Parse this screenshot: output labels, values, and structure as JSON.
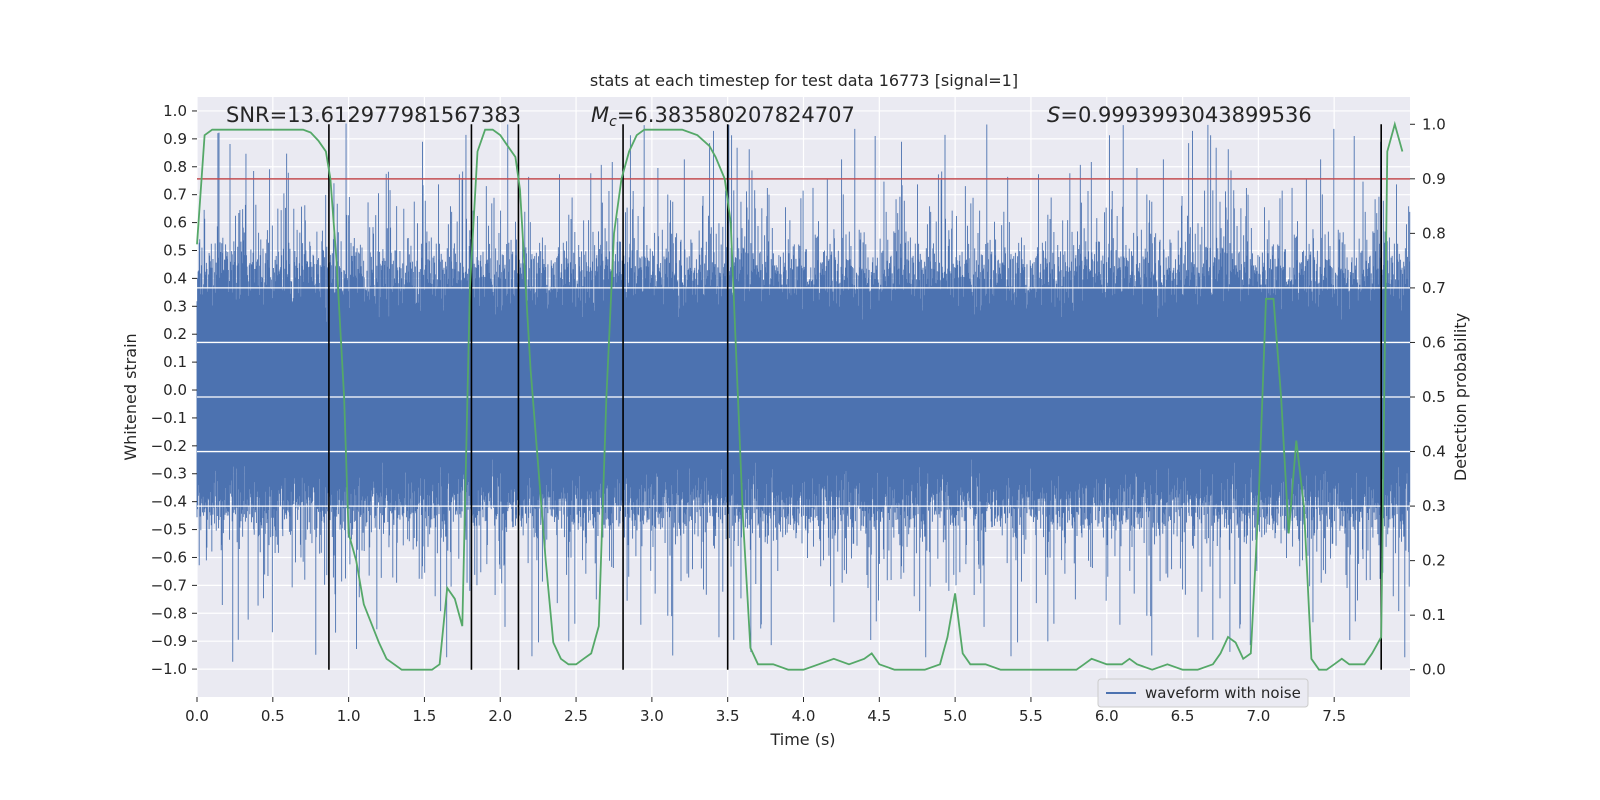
{
  "chart_data": {
    "type": "line",
    "title": "stats at each timestep for test data 16773 [signal=1]",
    "xlabel": "Time (s)",
    "ylabel_left": "Whitened strain",
    "ylabel_right": "Detection probability",
    "xlim": [
      0.0,
      8.0
    ],
    "ylim_left": [
      -1.1,
      1.05
    ],
    "ylim_right": [
      -0.05,
      1.05
    ],
    "x_ticks": [
      0.0,
      0.5,
      1.0,
      1.5,
      2.0,
      2.5,
      3.0,
      3.5,
      4.0,
      4.5,
      5.0,
      5.5,
      6.0,
      6.5,
      7.0,
      7.5
    ],
    "x_tick_labels": [
      "0.0",
      "0.5",
      "1.0",
      "1.5",
      "2.0",
      "2.5",
      "3.0",
      "3.5",
      "4.0",
      "4.5",
      "5.0",
      "5.5",
      "6.0",
      "6.5",
      "7.0",
      "7.5"
    ],
    "left_ticks": [
      1.0,
      0.9,
      0.8,
      0.7,
      0.6,
      0.5,
      0.4,
      0.3,
      0.2,
      0.1,
      0.0,
      -0.1,
      -0.2,
      -0.3,
      -0.4,
      -0.5,
      -0.6,
      -0.7,
      -0.8,
      -0.9,
      -1.0
    ],
    "left_tick_labels": [
      "1.0",
      "0.9",
      "0.8",
      "0.7",
      "0.6",
      "0.5",
      "0.4",
      "0.3",
      "0.2",
      "0.1",
      "0.0",
      "−0.1",
      "−0.2",
      "−0.3",
      "−0.4",
      "−0.5",
      "−0.6",
      "−0.7",
      "−0.8",
      "−0.9",
      "−1.0"
    ],
    "right_ticks": [
      1.0,
      0.9,
      0.8,
      0.7,
      0.6,
      0.5,
      0.4,
      0.3,
      0.2,
      0.1,
      0.0
    ],
    "right_tick_labels": [
      "1.0",
      "0.9",
      "0.8",
      "0.7",
      "0.6",
      "0.5",
      "0.4",
      "0.3",
      "0.2",
      "0.1",
      "0.0"
    ],
    "annotations": {
      "snr": "SNR=13.612977981567383",
      "mc_symbol": "M",
      "mc_sub": "c",
      "mc_value": "=6.383580207824707",
      "s_symbol": "S",
      "s_value": "=0.9993993043899536"
    },
    "threshold": {
      "axis": "right",
      "value": 0.9,
      "color": "#c44e52"
    },
    "segment_boundaries": [
      0.87,
      1.81,
      2.12,
      2.81,
      3.5,
      7.81
    ],
    "series": [
      {
        "name": "waveform with noise",
        "axis": "left",
        "color": "#4c72b0",
        "kind": "dense_noise",
        "typical_band": [
          -0.42,
          0.42
        ],
        "peak_max": 0.96,
        "peak_min": -1.0
      },
      {
        "name": "detection probability",
        "axis": "right",
        "color": "#55a868",
        "x": [
          0.0,
          0.05,
          0.1,
          0.2,
          0.3,
          0.4,
          0.5,
          0.6,
          0.7,
          0.75,
          0.8,
          0.85,
          0.88,
          0.92,
          0.97,
          1.0,
          1.05,
          1.1,
          1.2,
          1.25,
          1.35,
          1.45,
          1.5,
          1.55,
          1.6,
          1.65,
          1.7,
          1.75,
          1.8,
          1.85,
          1.9,
          1.95,
          2.0,
          2.05,
          2.1,
          2.13,
          2.2,
          2.3,
          2.35,
          2.4,
          2.45,
          2.5,
          2.55,
          2.6,
          2.65,
          2.7,
          2.75,
          2.8,
          2.85,
          2.9,
          2.95,
          3.0,
          3.1,
          3.2,
          3.3,
          3.38,
          3.42,
          3.48,
          3.52,
          3.6,
          3.65,
          3.7,
          3.75,
          3.8,
          3.9,
          4.0,
          4.1,
          4.2,
          4.3,
          4.4,
          4.45,
          4.5,
          4.6,
          4.8,
          4.9,
          4.95,
          5.0,
          5.05,
          5.1,
          5.2,
          5.3,
          5.4,
          5.5,
          5.6,
          5.7,
          5.8,
          5.85,
          5.9,
          6.0,
          6.1,
          6.15,
          6.2,
          6.3,
          6.4,
          6.5,
          6.6,
          6.7,
          6.75,
          6.8,
          6.85,
          6.9,
          6.95,
          7.0,
          7.05,
          7.1,
          7.15,
          7.2,
          7.25,
          7.3,
          7.35,
          7.4,
          7.45,
          7.5,
          7.55,
          7.6,
          7.7,
          7.75,
          7.81,
          7.85,
          7.9,
          7.95
        ],
        "y": [
          0.78,
          0.98,
          0.99,
          0.99,
          0.99,
          0.99,
          0.99,
          0.99,
          0.99,
          0.985,
          0.97,
          0.95,
          0.9,
          0.75,
          0.5,
          0.25,
          0.2,
          0.12,
          0.05,
          0.02,
          0.0,
          0.0,
          0.0,
          0.0,
          0.01,
          0.15,
          0.13,
          0.08,
          0.7,
          0.95,
          0.99,
          0.99,
          0.98,
          0.96,
          0.94,
          0.88,
          0.55,
          0.2,
          0.05,
          0.02,
          0.01,
          0.01,
          0.02,
          0.03,
          0.08,
          0.5,
          0.8,
          0.9,
          0.95,
          0.98,
          0.99,
          0.99,
          0.99,
          0.99,
          0.98,
          0.96,
          0.94,
          0.9,
          0.82,
          0.28,
          0.04,
          0.01,
          0.01,
          0.01,
          0.0,
          0.0,
          0.01,
          0.02,
          0.01,
          0.02,
          0.03,
          0.01,
          0.0,
          0.0,
          0.01,
          0.06,
          0.14,
          0.03,
          0.01,
          0.01,
          0.0,
          0.0,
          0.0,
          0.0,
          0.0,
          0.0,
          0.01,
          0.02,
          0.01,
          0.01,
          0.02,
          0.01,
          0.0,
          0.01,
          0.0,
          0.0,
          0.01,
          0.03,
          0.06,
          0.05,
          0.02,
          0.03,
          0.3,
          0.68,
          0.68,
          0.5,
          0.25,
          0.42,
          0.3,
          0.02,
          0.0,
          0.0,
          0.01,
          0.02,
          0.01,
          0.01,
          0.03,
          0.06,
          0.95,
          1.0,
          0.95
        ]
      }
    ],
    "legend": {
      "position": "lower-right",
      "entries": [
        "waveform with noise"
      ]
    }
  },
  "colors": {
    "plot_bg": "#eaeaf2",
    "grid": "#ffffff",
    "boundary": "#000000",
    "text": "#262626"
  }
}
